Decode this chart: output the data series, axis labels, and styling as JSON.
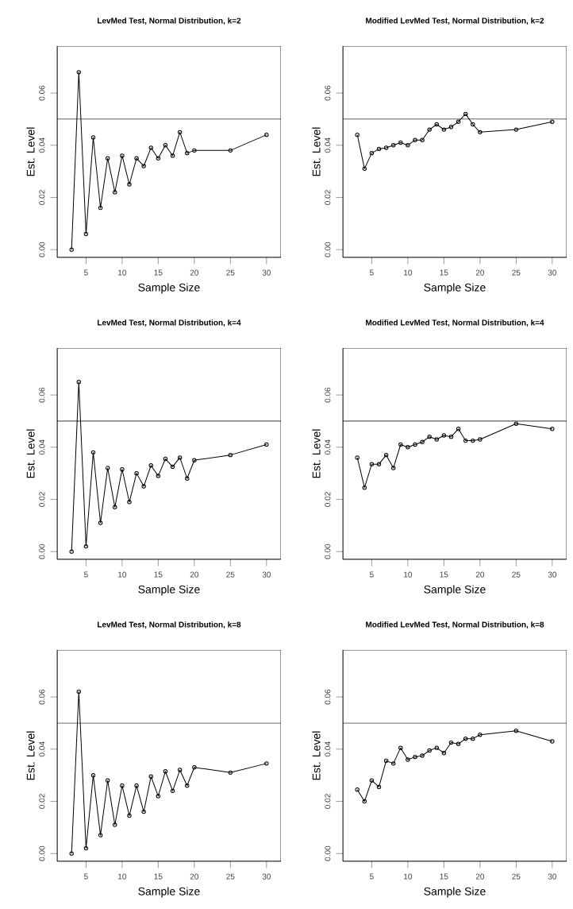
{
  "chart_data": [
    {
      "type": "line",
      "title": "LevMed Test, Normal Distribution, k=2",
      "xlabel": "Sample Size",
      "ylabel": "Est. Level",
      "color": "#000000",
      "marker": "circle",
      "x": [
        3,
        4,
        5,
        6,
        7,
        8,
        9,
        10,
        11,
        12,
        13,
        14,
        15,
        16,
        17,
        18,
        19,
        20,
        25,
        30
      ],
      "values": [
        0.0,
        0.068,
        0.006,
        0.043,
        0.016,
        0.035,
        0.022,
        0.036,
        0.025,
        0.035,
        0.032,
        0.039,
        0.035,
        0.04,
        0.036,
        0.045,
        0.037,
        0.038,
        0.038,
        0.044
      ],
      "xlim": [
        1,
        32
      ],
      "ylim": [
        -0.003,
        0.078
      ],
      "xticks": [
        5,
        10,
        15,
        20,
        25,
        30
      ],
      "yticks": [
        {
          "value": 0,
          "label": "0.00"
        },
        {
          "value": 0.02,
          "label": "0.02"
        },
        {
          "value": 0.04,
          "label": "0.04"
        },
        {
          "value": 0.06,
          "label": "0.06"
        }
      ],
      "ref_lines": [
        {
          "axis": "y",
          "value": 0.05
        }
      ]
    },
    {
      "type": "line",
      "title": "Modified LevMed Test, Normal Distribution, k=2",
      "xlabel": "Sample Size",
      "ylabel": "Est. Level",
      "color": "#000000",
      "marker": "circle",
      "x": [
        3,
        4,
        5,
        6,
        7,
        8,
        9,
        10,
        11,
        12,
        13,
        14,
        15,
        16,
        17,
        18,
        19,
        20,
        25,
        30
      ],
      "values": [
        0.044,
        0.031,
        0.037,
        0.0386,
        0.039,
        0.04,
        0.041,
        0.04,
        0.042,
        0.042,
        0.046,
        0.048,
        0.046,
        0.047,
        0.049,
        0.052,
        0.048,
        0.045,
        0.046,
        0.049
      ],
      "xlim": [
        1,
        32
      ],
      "ylim": [
        -0.003,
        0.078
      ],
      "xticks": [
        5,
        10,
        15,
        20,
        25,
        30
      ],
      "yticks": [
        {
          "value": 0,
          "label": "0.00"
        },
        {
          "value": 0.02,
          "label": "0.02"
        },
        {
          "value": 0.04,
          "label": "0.04"
        },
        {
          "value": 0.06,
          "label": "0.06"
        }
      ],
      "ref_lines": [
        {
          "axis": "y",
          "value": 0.05
        }
      ]
    },
    {
      "type": "line",
      "title": "LevMed Test, Normal Distribution, k=4",
      "xlabel": "Sample Size",
      "ylabel": "Est. Level",
      "color": "#000000",
      "marker": "circle",
      "x": [
        3,
        4,
        5,
        6,
        7,
        8,
        9,
        10,
        11,
        12,
        13,
        14,
        15,
        16,
        17,
        18,
        19,
        20,
        25,
        30
      ],
      "values": [
        0.0,
        0.065,
        0.002,
        0.038,
        0.011,
        0.032,
        0.017,
        0.0315,
        0.019,
        0.03,
        0.025,
        0.033,
        0.029,
        0.0355,
        0.0325,
        0.036,
        0.028,
        0.035,
        0.037,
        0.041
      ],
      "xlim": [
        1,
        32
      ],
      "ylim": [
        -0.003,
        0.078
      ],
      "xticks": [
        5,
        10,
        15,
        20,
        25,
        30
      ],
      "yticks": [
        {
          "value": 0,
          "label": "0.00"
        },
        {
          "value": 0.02,
          "label": "0.02"
        },
        {
          "value": 0.04,
          "label": "0.04"
        },
        {
          "value": 0.06,
          "label": "0.06"
        }
      ],
      "ref_lines": [
        {
          "axis": "y",
          "value": 0.05
        }
      ]
    },
    {
      "type": "line",
      "title": "Modified LevMed Test, Normal Distribution, k=4",
      "xlabel": "Sample Size",
      "ylabel": "Est. Level",
      "color": "#000000",
      "marker": "circle",
      "x": [
        3,
        4,
        5,
        6,
        7,
        8,
        9,
        10,
        11,
        12,
        13,
        14,
        15,
        16,
        17,
        18,
        19,
        20,
        25,
        30
      ],
      "values": [
        0.036,
        0.0245,
        0.0335,
        0.0335,
        0.037,
        0.032,
        0.041,
        0.04,
        0.041,
        0.042,
        0.044,
        0.043,
        0.0445,
        0.044,
        0.047,
        0.0425,
        0.0425,
        0.043,
        0.049,
        0.047
      ],
      "xlim": [
        1,
        32
      ],
      "ylim": [
        -0.003,
        0.078
      ],
      "xticks": [
        5,
        10,
        15,
        20,
        25,
        30
      ],
      "yticks": [
        {
          "value": 0,
          "label": "0.00"
        },
        {
          "value": 0.02,
          "label": "0.02"
        },
        {
          "value": 0.04,
          "label": "0.04"
        },
        {
          "value": 0.06,
          "label": "0.06"
        }
      ],
      "ref_lines": [
        {
          "axis": "y",
          "value": 0.05
        }
      ]
    },
    {
      "type": "line",
      "title": "LevMed Test, Normal Distribution, k=8",
      "xlabel": "Sample Size",
      "ylabel": "Est. Level",
      "color": "#000000",
      "marker": "circle",
      "x": [
        3,
        4,
        5,
        6,
        7,
        8,
        9,
        10,
        11,
        12,
        13,
        14,
        15,
        16,
        17,
        18,
        19,
        20,
        25,
        30
      ],
      "values": [
        0.0,
        0.062,
        0.002,
        0.03,
        0.007,
        0.028,
        0.011,
        0.026,
        0.0145,
        0.026,
        0.016,
        0.0295,
        0.022,
        0.0315,
        0.024,
        0.032,
        0.026,
        0.033,
        0.031,
        0.0345
      ],
      "xlim": [
        1,
        32
      ],
      "ylim": [
        -0.003,
        0.078
      ],
      "xticks": [
        5,
        10,
        15,
        20,
        25,
        30
      ],
      "yticks": [
        {
          "value": 0,
          "label": "0.00"
        },
        {
          "value": 0.02,
          "label": "0.02"
        },
        {
          "value": 0.04,
          "label": "0.04"
        },
        {
          "value": 0.06,
          "label": "0.06"
        }
      ],
      "ref_lines": [
        {
          "axis": "y",
          "value": 0.05
        }
      ]
    },
    {
      "type": "line",
      "title": "Modified LevMed Test, Normal Distribution, k=8",
      "xlabel": "Sample Size",
      "ylabel": "Est. Level",
      "color": "#000000",
      "marker": "circle",
      "x": [
        3,
        4,
        5,
        6,
        7,
        8,
        9,
        10,
        11,
        12,
        13,
        14,
        15,
        16,
        17,
        18,
        19,
        20,
        25,
        30
      ],
      "values": [
        0.0245,
        0.02,
        0.028,
        0.0255,
        0.0355,
        0.0345,
        0.0405,
        0.036,
        0.037,
        0.0375,
        0.0395,
        0.0405,
        0.0385,
        0.0425,
        0.042,
        0.044,
        0.044,
        0.0455,
        0.047,
        0.043
      ],
      "xlim": [
        1,
        32
      ],
      "ylim": [
        -0.003,
        0.078
      ],
      "xticks": [
        5,
        10,
        15,
        20,
        25,
        30
      ],
      "yticks": [
        {
          "value": 0,
          "label": "0.00"
        },
        {
          "value": 0.02,
          "label": "0.02"
        },
        {
          "value": 0.04,
          "label": "0.04"
        },
        {
          "value": 0.06,
          "label": "0.06"
        }
      ],
      "ref_lines": [
        {
          "axis": "y",
          "value": 0.05
        }
      ]
    }
  ]
}
